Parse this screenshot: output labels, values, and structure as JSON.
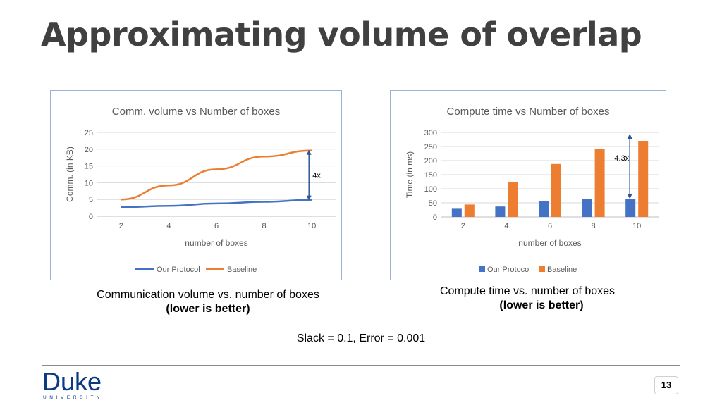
{
  "slide": {
    "title": "Approximating volume of overlap",
    "caption_left": "Communication volume vs. number of boxes",
    "caption_left_sub": "(lower is better)",
    "caption_right": "Compute time vs. number of boxes",
    "caption_right_sub": "(lower is better)",
    "params": "Slack =  0.1, Error = 0.001",
    "page_number": "13",
    "logo_word": "Duke",
    "logo_sub": "UNIVERSITY"
  },
  "colors": {
    "blue": "#4472c4",
    "orange": "#ed7d31",
    "grid": "#d9d9d9",
    "arrow": "#2e5597"
  },
  "chart_data": [
    {
      "type": "line",
      "title": "Comm. volume vs Number of boxes",
      "xlabel": "number of boxes",
      "ylabel": "Comm. (in KB)",
      "x": [
        2,
        4,
        6,
        8,
        10
      ],
      "ylim": [
        0,
        25
      ],
      "yticks": [
        0,
        5,
        10,
        15,
        20,
        25
      ],
      "series": [
        {
          "name": "Our Protocol",
          "values": [
            2.7,
            3.1,
            3.8,
            4.3,
            4.9
          ]
        },
        {
          "name": "Baseline",
          "values": [
            5.0,
            9.2,
            14.0,
            17.8,
            19.6
          ]
        }
      ],
      "annotation": "4x",
      "grid": true,
      "legend": "bottom"
    },
    {
      "type": "bar",
      "title": "Compute time vs Number of boxes",
      "xlabel": "number of boxes",
      "ylabel": "Time (in ms)",
      "categories": [
        "2",
        "4",
        "6",
        "8",
        "10"
      ],
      "ylim": [
        0,
        300
      ],
      "yticks": [
        0,
        50,
        100,
        150,
        200,
        250,
        300
      ],
      "series": [
        {
          "name": "Our Protocol",
          "values": [
            29,
            37,
            55,
            64,
            64
          ]
        },
        {
          "name": "Baseline",
          "values": [
            44,
            124,
            188,
            242,
            270
          ]
        }
      ],
      "annotation": "4.3x",
      "grid": true,
      "legend": "bottom"
    }
  ]
}
